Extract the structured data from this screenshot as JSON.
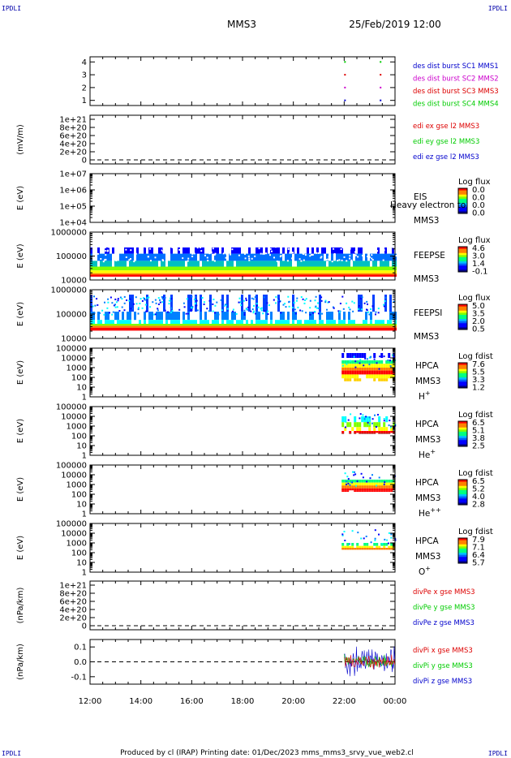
{
  "header": {
    "corner_tl": "IPDLI",
    "corner_tr": "IPDLI",
    "corner_bl": "IPDLI",
    "corner_br": "IPDLI",
    "spacecraft": "MMS3",
    "datetime": "25/Feb/2019 12:00"
  },
  "footer": {
    "text": "Produced by cl (IRAP)    Printing date: 01/Dec/2023    mms_mms3_srvy_vue_web2.cl"
  },
  "time_axis": {
    "ticks": [
      "12:00",
      "14:00",
      "16:00",
      "18:00",
      "20:00",
      "22:00",
      "00:00"
    ]
  },
  "colors": {
    "blue": "#0000cc",
    "magenta": "#cc00cc",
    "red": "#dd0000",
    "green": "#00cc00"
  },
  "chart_data": [
    {
      "type": "scatter",
      "id": "des",
      "yticks": [
        "1",
        "2",
        "3",
        "4"
      ],
      "ylim": [
        0.6,
        4.4
      ],
      "legend": [
        "des dist burst SC1 MMS1",
        "des dist burst SC2 MMS2",
        "des dist burst SC3 MMS3",
        "des dist burst SC4 MMS4"
      ],
      "legend_colors": [
        "#0000cc",
        "#cc00cc",
        "#dd0000",
        "#00cc00"
      ],
      "series": [
        {
          "name": "SC1",
          "y": 1,
          "x_hours": [
            22.0,
            23.4
          ]
        },
        {
          "name": "SC2",
          "y": 2,
          "x_hours": [
            22.0,
            23.4
          ]
        },
        {
          "name": "SC3",
          "y": 3,
          "x_hours": [
            22.0,
            23.4
          ]
        },
        {
          "name": "SC4",
          "y": 4,
          "x_hours": [
            22.0,
            23.4
          ]
        }
      ]
    },
    {
      "type": "line",
      "id": "edi",
      "ylabel": "(mV/m)",
      "yticks": [
        "0",
        "2e+20",
        "4e+20",
        "6e+20",
        "8e+20",
        "1e+21"
      ],
      "legend": [
        "edi ex gse l2 MMS3",
        "edi ey gse l2 MMS3",
        "edi ez gse l2 MMS3"
      ],
      "legend_colors": [
        "#dd0000",
        "#00cc00",
        "#0000cc"
      ]
    },
    {
      "type": "heatmap",
      "id": "eis",
      "ylabel": "E (eV)",
      "yticks": [
        "1e+04",
        "1e+05",
        "1e+06",
        "1e+07"
      ],
      "instrument": "EIS",
      "sc": "MMS3",
      "overlay": "Heavy electron to",
      "colorbar_title": "Log flux",
      "colorbar_ticks": [
        "0.0",
        "0.0",
        "0.0",
        "0.0"
      ]
    },
    {
      "type": "heatmap",
      "id": "feepse",
      "ylabel": "E (eV)",
      "yticks": [
        "10000",
        "100000",
        "1000000"
      ],
      "instrument": "FEEPSE",
      "sc": "MMS3",
      "colorbar_title": "Log flux",
      "colorbar_ticks": [
        "4.6",
        "3.0",
        "1.4",
        "-0.1"
      ],
      "x_range_hours": [
        12.0,
        24.0
      ]
    },
    {
      "type": "heatmap",
      "id": "feepsi",
      "ylabel": "E (eV)",
      "yticks": [
        "10000",
        "100000",
        "1000000"
      ],
      "instrument": "FEEPSI",
      "sc": "MMS3",
      "colorbar_title": "Log flux",
      "colorbar_ticks": [
        "5.0",
        "3.5",
        "2.0",
        "0.5"
      ],
      "x_range_hours": [
        12.0,
        24.0
      ]
    },
    {
      "type": "heatmap",
      "id": "hpca_h",
      "ylabel": "E (eV)",
      "yticks": [
        "1",
        "10",
        "100",
        "1000",
        "10000",
        "100000"
      ],
      "instrument": "HPCA",
      "sc": "MMS3",
      "species": "H",
      "species_sup": "+",
      "colorbar_title": "Log fdist",
      "colorbar_ticks": [
        "7.6",
        "5.5",
        "3.3",
        "1.2"
      ],
      "x_range_hours": [
        21.9,
        24.0
      ]
    },
    {
      "type": "heatmap",
      "id": "hpca_he1",
      "ylabel": "E (eV)",
      "yticks": [
        "1",
        "10",
        "100",
        "1000",
        "10000",
        "100000"
      ],
      "instrument": "HPCA",
      "sc": "MMS3",
      "species": "He",
      "species_sup": "+",
      "colorbar_title": "Log fdist",
      "colorbar_ticks": [
        "6.5",
        "5.1",
        "3.8",
        "2.5"
      ],
      "x_range_hours": [
        21.9,
        24.0
      ]
    },
    {
      "type": "heatmap",
      "id": "hpca_he2",
      "ylabel": "E (eV)",
      "yticks": [
        "1",
        "10",
        "100",
        "1000",
        "10000",
        "100000"
      ],
      "instrument": "HPCA",
      "sc": "MMS3",
      "species": "He",
      "species_sup": "++",
      "colorbar_title": "Log fdist",
      "colorbar_ticks": [
        "6.5",
        "5.2",
        "4.0",
        "2.8"
      ],
      "x_range_hours": [
        21.9,
        24.0
      ]
    },
    {
      "type": "heatmap",
      "id": "hpca_o",
      "ylabel": "E (eV)",
      "yticks": [
        "1",
        "10",
        "100",
        "1000",
        "10000",
        "100000"
      ],
      "instrument": "HPCA",
      "sc": "MMS3",
      "species": "O",
      "species_sup": "+",
      "colorbar_title": "Log fdist",
      "colorbar_ticks": [
        "7.9",
        "7.1",
        "6.4",
        "5.7"
      ],
      "x_range_hours": [
        21.9,
        24.0
      ]
    },
    {
      "type": "line",
      "id": "divpe",
      "ylabel": "(nPa/km)",
      "yticks": [
        "0",
        "2e+20",
        "4e+20",
        "6e+20",
        "8e+20",
        "1e+21"
      ],
      "legend": [
        "divPe x gse MMS3",
        "divPe y gse MMS3",
        "divPe z gse MMS3"
      ],
      "legend_colors": [
        "#dd0000",
        "#00cc00",
        "#0000cc"
      ]
    },
    {
      "type": "line",
      "id": "divpi",
      "ylabel": "(nPa/km)",
      "yticks": [
        "-0.1",
        "0.0",
        "0.1"
      ],
      "ylim": [
        -0.15,
        0.15
      ],
      "legend": [
        "divPi x gse MMS3",
        "divPi y gse MMS3",
        "divPi z gse MMS3"
      ],
      "legend_colors": [
        "#dd0000",
        "#00cc00",
        "#0000cc"
      ],
      "x_range_hours": [
        22.0,
        24.0
      ]
    }
  ]
}
